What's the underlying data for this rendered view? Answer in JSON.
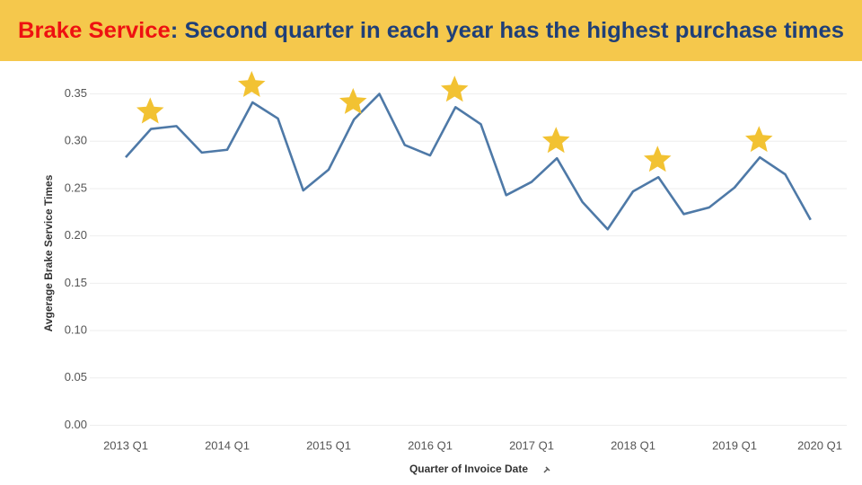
{
  "chart_data": {
    "type": "line",
    "title_highlight": "Brake Service",
    "title": ": Second quarter in each year has the highest purchase times",
    "x_label": "Quarter of Invoice Date",
    "y_label": "Avgerage Brake Service Times",
    "categories": [
      "2013 Q1",
      null,
      null,
      null,
      "2014 Q1",
      null,
      null,
      null,
      "2015 Q1",
      null,
      null,
      null,
      "2016 Q1",
      null,
      null,
      null,
      "2017 Q1",
      null,
      null,
      null,
      "2018 Q1",
      null,
      null,
      null,
      "2019 Q1",
      null,
      null,
      null,
      "2020 Q1"
    ],
    "values": [
      0.283,
      0.313,
      0.316,
      0.288,
      0.291,
      0.341,
      0.324,
      0.248,
      0.27,
      0.323,
      0.35,
      0.296,
      0.285,
      0.336,
      0.318,
      0.243,
      0.257,
      0.282,
      0.236,
      0.207,
      0.247,
      0.262,
      0.223,
      0.23,
      0.251,
      0.283,
      0.265,
      0.217,
      null
    ],
    "color": "#4e79a7",
    "star_points": [
      1,
      5,
      9,
      13,
      17,
      21,
      25
    ],
    "star_color": "#f2c232",
    "ylim": [
      -0.01,
      0.36
    ],
    "yticks": [
      {
        "value": 0,
        "label": "0.00"
      },
      {
        "value": 0.05,
        "label": "0.05"
      },
      {
        "value": 0.1,
        "label": "0.10"
      },
      {
        "value": 0.15,
        "label": "0.15"
      },
      {
        "value": 0.2,
        "label": "0.20"
      },
      {
        "value": 0.25,
        "label": "0.25"
      },
      {
        "value": 0.3,
        "label": "0.30"
      },
      {
        "value": 0.35,
        "label": "0.35"
      }
    ],
    "grid": true
  }
}
